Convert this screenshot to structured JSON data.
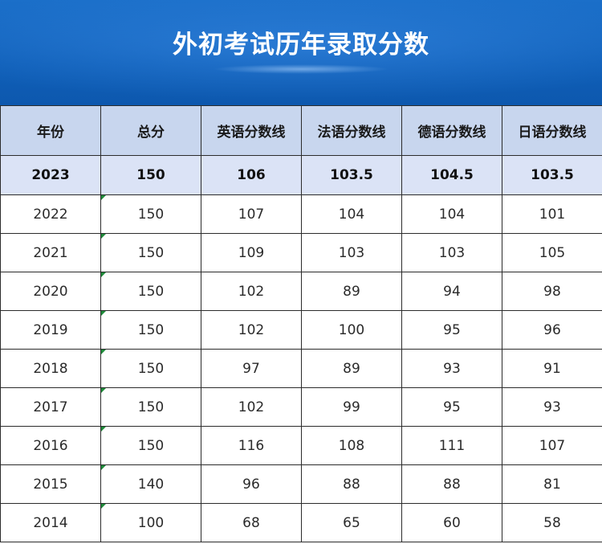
{
  "title": "外初考试历年录取分数",
  "table": {
    "headers": [
      "年份",
      "总分",
      "英语分数线",
      "法语分数线",
      "德语分数线",
      "日语分数线"
    ],
    "highlight_row": [
      "2023",
      "150",
      "106",
      "103.5",
      "104.5",
      "103.5"
    ],
    "rows": [
      [
        "2022",
        "150",
        "107",
        "104",
        "104",
        "101"
      ],
      [
        "2021",
        "150",
        "109",
        "103",
        "103",
        "105"
      ],
      [
        "2020",
        "150",
        "102",
        "89",
        "94",
        "98"
      ],
      [
        "2019",
        "150",
        "102",
        "100",
        "95",
        "96"
      ],
      [
        "2018",
        "150",
        "97",
        "89",
        "93",
        "91"
      ],
      [
        "2017",
        "150",
        "102",
        "99",
        "95",
        "93"
      ],
      [
        "2016",
        "150",
        "116",
        "108",
        "111",
        "107"
      ],
      [
        "2015",
        "140",
        "96",
        "88",
        "88",
        "81"
      ],
      [
        "2014",
        "100",
        "68",
        "65",
        "60",
        "58"
      ]
    ]
  },
  "colors": {
    "banner": "#0f5fb8",
    "header_row": "#c8d6ee",
    "highlight_row": "#dbe3f6",
    "cell_marker": "#1f8a3a"
  }
}
